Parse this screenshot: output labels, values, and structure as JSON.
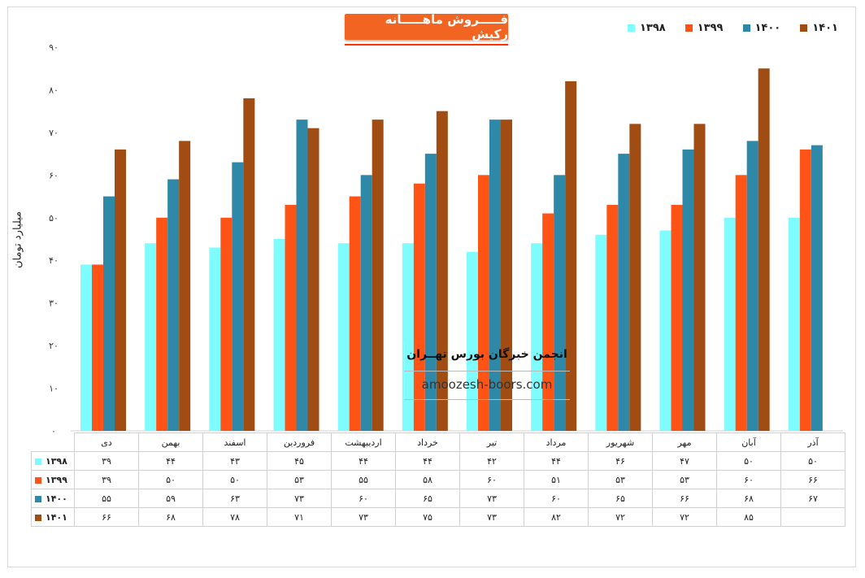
{
  "title": "فـــــروش ماهـــــانه رکیش",
  "ylabel": "میلیارد تومان",
  "watermark": {
    "line1": "انجمن خبرگان بورس تهــران",
    "line2": "amoozesh-boors.com"
  },
  "chart_data": {
    "type": "bar",
    "categories": [
      "دی",
      "بهمن",
      "اسفند",
      "فروردین",
      "اردیبهشت",
      "خرداد",
      "تیر",
      "مرداد",
      "شهریور",
      "مهر",
      "آبان",
      "آذر"
    ],
    "series": [
      {
        "name": "۱۳۹۸",
        "color": "#7ffcff",
        "values": [
          39,
          44,
          43,
          45,
          44,
          44,
          42,
          44,
          46,
          47,
          50,
          50
        ]
      },
      {
        "name": "۱۳۹۹",
        "color": "#ff5416",
        "values": [
          39,
          50,
          50,
          53,
          55,
          58,
          60,
          51,
          53,
          53,
          60,
          66
        ]
      },
      {
        "name": "۱۴۰۰",
        "color": "#2e88a8",
        "values": [
          55,
          59,
          63,
          73,
          60,
          65,
          73,
          60,
          65,
          66,
          68,
          67
        ]
      },
      {
        "name": "۱۴۰۱",
        "color": "#a04c12",
        "values": [
          66,
          68,
          78,
          71,
          73,
          75,
          73,
          82,
          72,
          72,
          85,
          null
        ]
      }
    ],
    "ylim": [
      0,
      90
    ],
    "yticks": [
      0,
      10,
      20,
      30,
      40,
      50,
      60,
      70,
      80,
      90
    ],
    "ytick_labels": [
      "۰",
      "۱۰",
      "۲۰",
      "۳۰",
      "۴۰",
      "۵۰",
      "۶۰",
      "۷۰",
      "۸۰",
      "۹۰"
    ],
    "table_values": [
      [
        "۳۹",
        "۴۴",
        "۴۳",
        "۴۵",
        "۴۴",
        "۴۴",
        "۴۲",
        "۴۴",
        "۴۶",
        "۴۷",
        "۵۰",
        "۵۰"
      ],
      [
        "۳۹",
        "۵۰",
        "۵۰",
        "۵۳",
        "۵۵",
        "۵۸",
        "۶۰",
        "۵۱",
        "۵۳",
        "۵۳",
        "۶۰",
        "۶۶"
      ],
      [
        "۵۵",
        "۵۹",
        "۶۳",
        "۷۳",
        "۶۰",
        "۶۵",
        "۷۳",
        "۶۰",
        "۶۵",
        "۶۶",
        "۶۸",
        "۶۷"
      ],
      [
        "۶۶",
        "۶۸",
        "۷۸",
        "۷۱",
        "۷۳",
        "۷۵",
        "۷۳",
        "۸۲",
        "۷۲",
        "۷۲",
        "۸۵",
        ""
      ]
    ],
    "grid": false,
    "legend_position": "top-right"
  }
}
